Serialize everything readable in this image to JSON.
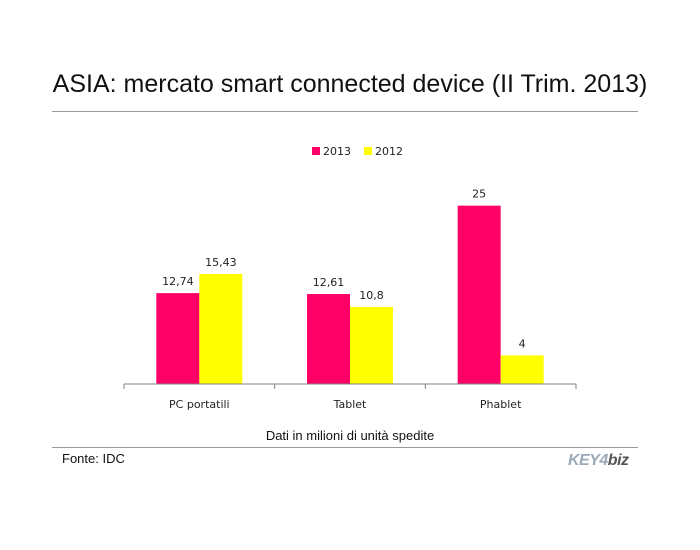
{
  "header": {
    "title": "ASIA: mercato smart connected device (II Trim. 2013)"
  },
  "footer": {
    "caption": "Dati in milioni di unità spedite",
    "source": "Fonte: IDC",
    "logo_text": "KEY4biz",
    "logo_part1": "KEY4",
    "logo_part2": "biz"
  },
  "colors": {
    "series_2013": "#ff0066",
    "series_2012": "#ffff00",
    "axis": "#808080",
    "rule": "#9a9a9a"
  },
  "chart_data": {
    "type": "bar",
    "title": "ASIA: mercato smart connected device (II Trim. 2013)",
    "xlabel": "Dati in milioni di unità spedite",
    "ylabel": "",
    "categories": [
      "PC portatili",
      "Tablet",
      "Phablet"
    ],
    "series": [
      {
        "name": "2013",
        "values": [
          12.74,
          12.61,
          25
        ],
        "labels": [
          "12,74",
          "12,61",
          "25"
        ]
      },
      {
        "name": "2012",
        "values": [
          15.43,
          10.8,
          4
        ],
        "labels": [
          "15,43",
          "10,8",
          "4"
        ]
      }
    ],
    "ylim": [
      0,
      30
    ],
    "grid": false,
    "legend": "top-center"
  }
}
